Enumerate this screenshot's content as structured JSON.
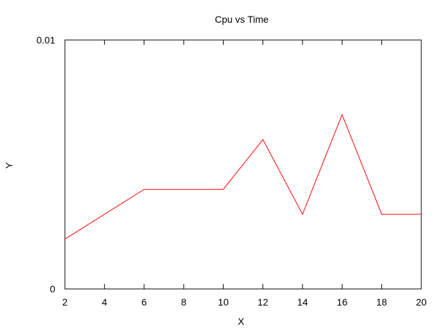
{
  "chart_data": {
    "type": "line",
    "title": "Cpu vs Time",
    "xlabel": "X",
    "ylabel": "Y",
    "xlim": [
      2,
      20
    ],
    "ylim": [
      0,
      0.01
    ],
    "x_ticks": [
      2,
      4,
      6,
      8,
      10,
      12,
      14,
      16,
      18,
      20
    ],
    "x_tick_labels": [
      "2",
      "4",
      "6",
      "8",
      "10",
      "12",
      "14",
      "16",
      "18",
      "20"
    ],
    "y_ticks": [
      0,
      0.01
    ],
    "y_tick_labels": [
      "0",
      "0.01"
    ],
    "grid": false,
    "series": [
      {
        "color": "#ff0000",
        "x": [
          2,
          4,
          6,
          8,
          10,
          12,
          14,
          16,
          18,
          20
        ],
        "y": [
          0.002,
          0.003,
          0.004,
          0.004,
          0.004,
          0.006,
          0.003,
          0.007,
          0.003,
          0.003
        ]
      }
    ]
  }
}
